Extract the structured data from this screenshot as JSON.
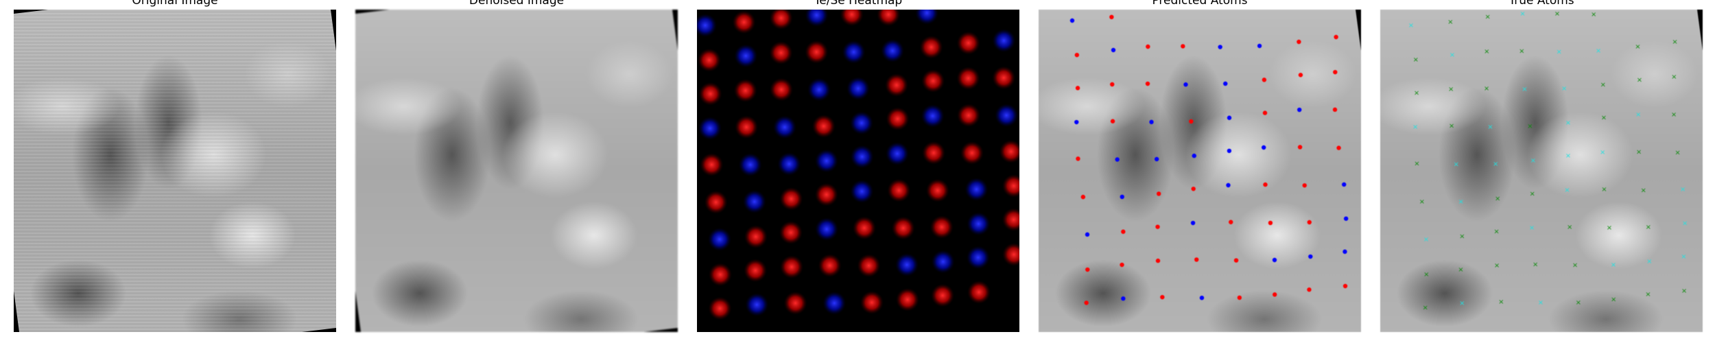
{
  "panels": [
    {
      "id": "original",
      "title": "Original Image"
    },
    {
      "id": "denoised",
      "title": "Denoised Image"
    },
    {
      "id": "heatmap",
      "title": "Te/Se Heatmap"
    },
    {
      "id": "predicted",
      "title": "Predicted Atoms"
    },
    {
      "id": "true",
      "title": "True Atoms"
    }
  ],
  "colors": {
    "te_heat": "#e81010",
    "se_heat": "#1a22e0",
    "te_pred": "#ff0000",
    "se_pred": "#0000ff",
    "te_true": "#0a8a0a",
    "se_true": "#22e0e0"
  }
}
